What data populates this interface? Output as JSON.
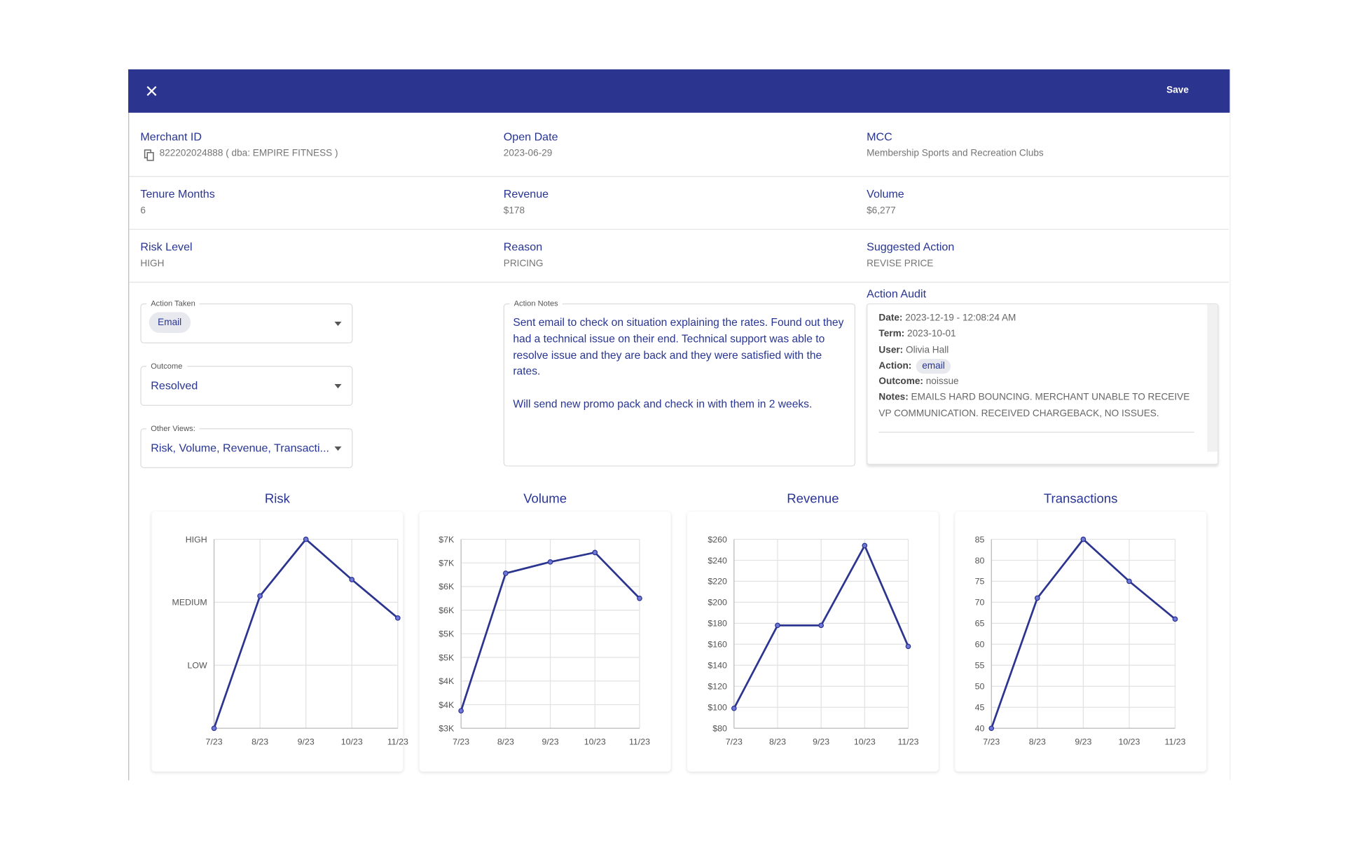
{
  "header": {
    "action": "Save"
  },
  "fields": [
    {
      "label": "Merchant ID",
      "value": "822202024888 ( dba: EMPIRE FITNESS )"
    },
    {
      "label": "Open Date",
      "value": "2023-06-29"
    },
    {
      "label": "MCC",
      "value": "Membership Sports and Recreation Clubs"
    },
    {
      "label": "Tenure Months",
      "value": "6"
    },
    {
      "label": "Revenue",
      "value": "$178"
    },
    {
      "label": "Volume",
      "value": "$6,277"
    },
    {
      "label": "Risk Level",
      "value": "HIGH"
    },
    {
      "label": "Reason",
      "value": "PRICING"
    },
    {
      "label": "Suggested Action",
      "value": "REVISE PRICE"
    }
  ],
  "form": {
    "action_taken": {
      "label": "Action Taken",
      "value": "Email"
    },
    "outcome": {
      "label": "Outcome",
      "value": "Resolved"
    },
    "other_views": {
      "label": "Other Views:",
      "value": "Risk, Volume, Revenue, Transacti..."
    },
    "action_notes": {
      "label": "Action Notes",
      "paragraphs": [
        "Sent email to check on situation explaining the rates. Found out they had a technical issue on their end. Technical support was able to resolve issue and they are back and they were satisfied with the rates.",
        "Will send new promo pack and check in with them in 2 weeks."
      ]
    }
  },
  "audit": {
    "title": "Action Audit",
    "entries": [
      {
        "label": "Date:",
        "value": "2023-12-19 - 12:08:24 AM"
      },
      {
        "label": "Term:",
        "value": "2023-10-01"
      },
      {
        "label": "User:",
        "value": "Olivia Hall"
      },
      {
        "label": "Action:",
        "value": "email"
      },
      {
        "label": "Outcome:",
        "value": "noissue"
      },
      {
        "label": "Notes:",
        "value": "EMAILS HARD BOUNCING. MERCHANT UNABLE TO RECEIVE VP COMMUNICATION. RECEIVED CHARGEBACK, NO ISSUES."
      }
    ]
  },
  "chart_data": [
    {
      "type": "line",
      "title": "Risk",
      "categories": [
        "7/23",
        "8/23",
        "9/23",
        "10/23",
        "11/23"
      ],
      "values": [
        0,
        2.1,
        3,
        2.36,
        1.75
      ],
      "color": "#2b348f",
      "ylim": [
        0,
        3
      ],
      "yticks": [
        {
          "value": 1,
          "label": "LOW"
        },
        {
          "value": 2,
          "label": "MEDIUM"
        },
        {
          "value": 3,
          "label": "HIGH"
        }
      ],
      "grid": true
    },
    {
      "type": "line",
      "title": "Volume",
      "categories": [
        "7/23",
        "8/23",
        "9/23",
        "10/23",
        "11/23"
      ],
      "values": [
        3370,
        6280,
        6520,
        6720,
        5750
      ],
      "color": "#2b348f",
      "ylim": [
        3000,
        7000
      ],
      "yticks": [
        {
          "value": 3000,
          "label": "$3K"
        },
        {
          "value": 3500,
          "label": "$4K"
        },
        {
          "value": 4000,
          "label": "$4K"
        },
        {
          "value": 4500,
          "label": "$5K"
        },
        {
          "value": 5000,
          "label": "$5K"
        },
        {
          "value": 5500,
          "label": "$6K"
        },
        {
          "value": 6000,
          "label": "$6K"
        },
        {
          "value": 6500,
          "label": "$7K"
        },
        {
          "value": 7000,
          "label": "$7K"
        }
      ],
      "grid": true
    },
    {
      "type": "line",
      "title": "Revenue",
      "categories": [
        "7/23",
        "8/23",
        "9/23",
        "10/23",
        "11/23"
      ],
      "values": [
        99,
        178,
        178,
        254,
        158
      ],
      "color": "#2b348f",
      "ylim": [
        80,
        260
      ],
      "yticks": [
        {
          "value": 80,
          "label": "$80"
        },
        {
          "value": 100,
          "label": "$100"
        },
        {
          "value": 120,
          "label": "$120"
        },
        {
          "value": 140,
          "label": "$140"
        },
        {
          "value": 160,
          "label": "$160"
        },
        {
          "value": 180,
          "label": "$180"
        },
        {
          "value": 200,
          "label": "$200"
        },
        {
          "value": 220,
          "label": "$220"
        },
        {
          "value": 240,
          "label": "$240"
        },
        {
          "value": 260,
          "label": "$260"
        }
      ],
      "grid": true
    },
    {
      "type": "line",
      "title": "Transactions",
      "categories": [
        "7/23",
        "8/23",
        "9/23",
        "10/23",
        "11/23"
      ],
      "values": [
        40,
        71,
        85,
        75,
        66
      ],
      "color": "#2b348f",
      "ylim": [
        40,
        85
      ],
      "yticks": [
        40,
        45,
        50,
        55,
        60,
        65,
        70,
        75,
        80,
        85
      ],
      "grid": true
    }
  ]
}
